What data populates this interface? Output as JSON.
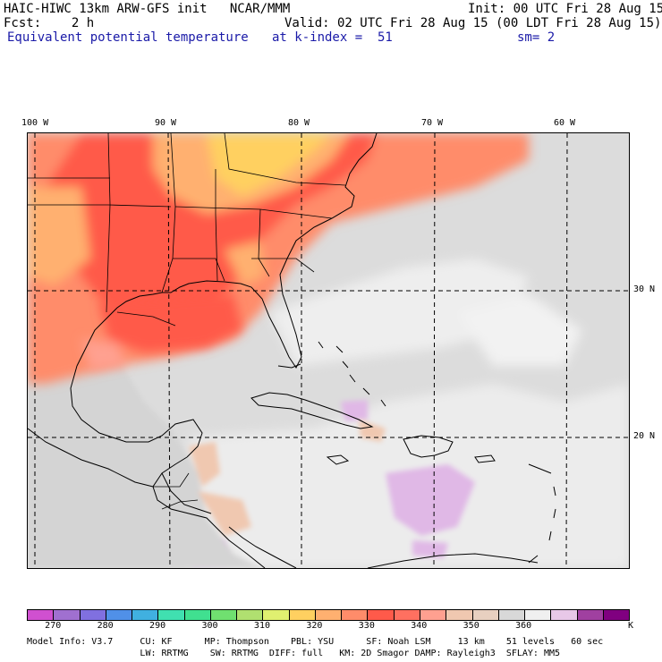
{
  "header": {
    "model": "HAIC-HIWC 13km ARW-GFS init   NCAR/MMM",
    "init": "Init: 00 UTC Fri 28 Aug 15",
    "fcst": "Fcst:    2 h",
    "valid": "Valid: 02 UTC Fri 28 Aug 15 (00 LDT Fri 28 Aug 15)",
    "field": "Equivalent potential temperature",
    "level": "at k-index =  51",
    "smooth": "sm= 2"
  },
  "map": {
    "lon_labels": [
      "100 W",
      "90 W",
      "80 W",
      "70 W",
      "60 W"
    ],
    "lat_labels": [
      "30 N",
      "20 N"
    ],
    "colors": {
      "sea_gray": "#dcdcdc",
      "light": "#f0f0f0",
      "lavender": "#e0b8e6",
      "orange_red": "#ff5a4a",
      "salmon": "#ff8c6a",
      "peach": "#ffb070",
      "yellow": "#ffd060",
      "beige": "#f0c8b0"
    }
  },
  "colorbar": {
    "colors": [
      "#d050d0",
      "#a070d0",
      "#8070e0",
      "#5090e8",
      "#40b0e0",
      "#40e0b0",
      "#40e090",
      "#70e070",
      "#b0e070",
      "#e0f070",
      "#ffd060",
      "#ffb070",
      "#ff8c6a",
      "#ff5a4a",
      "#ff7060",
      "#ffa090",
      "#f0c8b0",
      "#e8d0c0",
      "#d8d8d8",
      "#f0f0f0",
      "#e8c8e8",
      "#a040a0",
      "#800080"
    ],
    "labels": [
      "270",
      "280",
      "290",
      "300",
      "310",
      "320",
      "330",
      "340",
      "350",
      "360",
      "K"
    ]
  },
  "footer": {
    "line1": "Model Info: V3.7     CU: KF      MP: Thompson    PBL: YSU      SF: Noah LSM     13 km    51 levels   60 sec",
    "line2": "                     LW: RRTMG    SW: RRTMG  DIFF: full   KM: 2D Smagor DAMP: Rayleigh3  SFLAY: MM5"
  }
}
